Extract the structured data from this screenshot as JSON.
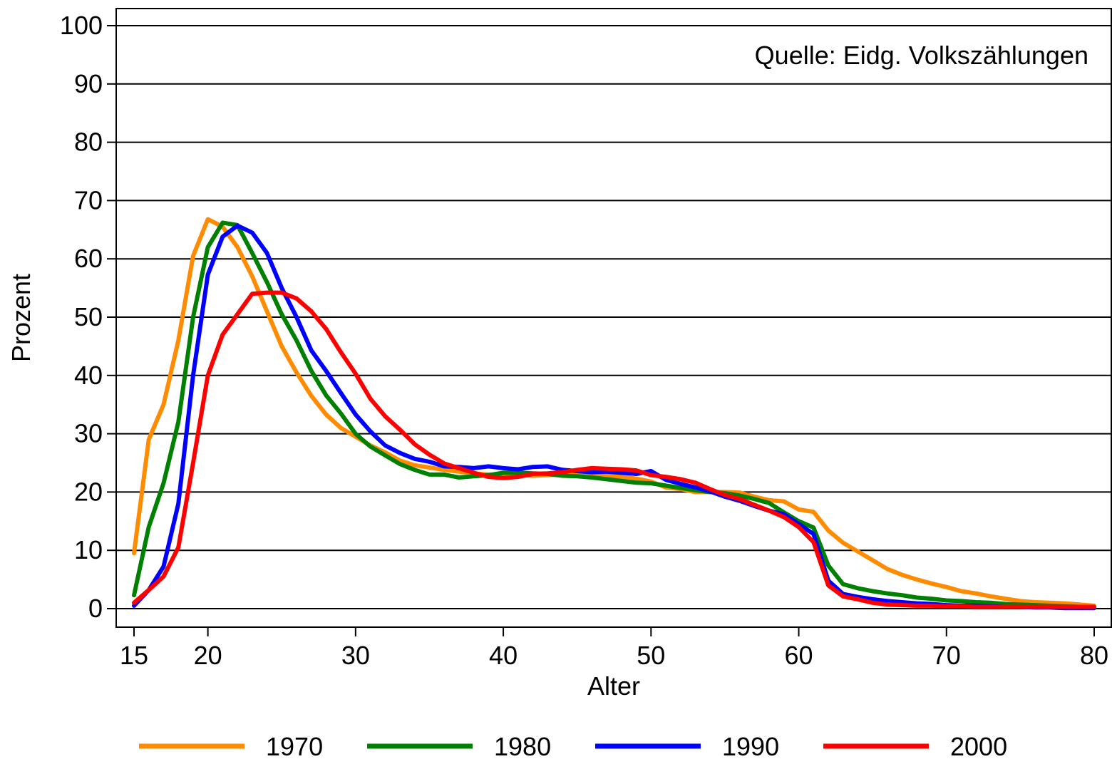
{
  "chart_data": {
    "type": "line",
    "title": "",
    "xlabel": "Alter",
    "ylabel": "Prozent",
    "annotation": "Quelle: Eidg. Volkszählungen",
    "xlim": [
      15,
      80
    ],
    "ylim": [
      0,
      100
    ],
    "xticks": [
      15,
      20,
      30,
      40,
      50,
      60,
      70,
      80
    ],
    "yticks": [
      0,
      10,
      20,
      30,
      40,
      50,
      60,
      70,
      80,
      90,
      100
    ],
    "grid": "horizontal",
    "legend_position": "bottom",
    "x": [
      15,
      16,
      17,
      18,
      19,
      20,
      21,
      22,
      23,
      24,
      25,
      26,
      27,
      28,
      29,
      30,
      31,
      32,
      33,
      34,
      35,
      36,
      37,
      38,
      39,
      40,
      41,
      42,
      43,
      44,
      45,
      46,
      47,
      48,
      49,
      50,
      51,
      52,
      53,
      54,
      55,
      56,
      57,
      58,
      59,
      60,
      61,
      62,
      63,
      64,
      65,
      66,
      67,
      68,
      69,
      70,
      71,
      72,
      73,
      74,
      75,
      76,
      77,
      78,
      79,
      80
    ],
    "series": [
      {
        "name": "1970",
        "color": "#ff8c00",
        "values": [
          9.5,
          29,
          35,
          46,
          60.5,
          66.8,
          65.5,
          62,
          57,
          51,
          45,
          40.5,
          36.5,
          33.3,
          31,
          29.5,
          28,
          26.8,
          25.4,
          24.6,
          24.2,
          23.8,
          23.5,
          23.2,
          23,
          22.9,
          22.9,
          22.8,
          22.9,
          23,
          23.2,
          23.2,
          22.9,
          22.6,
          22.3,
          21.8,
          20.8,
          20.5,
          20,
          20,
          20,
          19.9,
          19.2,
          18.6,
          18.4,
          17,
          16.6,
          13.4,
          11.3,
          9.8,
          8.3,
          6.8,
          5.8,
          5,
          4.3,
          3.7,
          3,
          2.6,
          2.1,
          1.7,
          1.3,
          1.1,
          1,
          0.9,
          0.7,
          0.5
        ]
      },
      {
        "name": "1980",
        "color": "#008000",
        "values": [
          2.3,
          14,
          21.5,
          32,
          50,
          62,
          66.2,
          65.8,
          61,
          56,
          50.5,
          46,
          40.8,
          36.6,
          33.5,
          30,
          27.8,
          26.3,
          24.8,
          23.8,
          23,
          23,
          22.5,
          22.7,
          22.9,
          23.3,
          23.3,
          23.2,
          23.1,
          22.8,
          22.7,
          22.5,
          22.2,
          21.9,
          21.6,
          21.5,
          21.1,
          20.7,
          20.3,
          20,
          19.8,
          19.4,
          18.8,
          18.1,
          16.5,
          15,
          13.9,
          7.4,
          4.2,
          3.5,
          3,
          2.6,
          2.3,
          1.9,
          1.7,
          1.4,
          1.3,
          1.1,
          1,
          0.8,
          0.7,
          0.6,
          0.5,
          0.4,
          0.3,
          0.2
        ]
      },
      {
        "name": "1990",
        "color": "#0000ff",
        "values": [
          0.5,
          3.2,
          7.2,
          18,
          40,
          57.3,
          63.8,
          65.7,
          64.5,
          61,
          55,
          50,
          44.3,
          40.8,
          37,
          33.3,
          30.4,
          28,
          26.7,
          25.7,
          25.2,
          24.4,
          24.3,
          24.1,
          24.4,
          24.1,
          23.9,
          24.3,
          24.4,
          23.8,
          23.6,
          23.4,
          23.5,
          23.3,
          23.1,
          23.6,
          22.1,
          21.4,
          20.8,
          20.1,
          19.2,
          18.5,
          17.6,
          16.8,
          16.2,
          14.5,
          12.8,
          4.8,
          2.5,
          2,
          1.6,
          1.3,
          1.1,
          0.9,
          0.8,
          0.6,
          0.5,
          0.5,
          0.4,
          0.3,
          0.3,
          0.2,
          0.2,
          0.1,
          0.1,
          0.1
        ]
      },
      {
        "name": "2000",
        "color": "#ff0000",
        "values": [
          1,
          3.2,
          5.5,
          10.5,
          25,
          40,
          47,
          50.5,
          54,
          54.2,
          54.2,
          53.2,
          51,
          48,
          44,
          40.3,
          36,
          33,
          30.7,
          28.2,
          26.4,
          24.9,
          24.1,
          23.3,
          22.6,
          22.4,
          22.6,
          23.1,
          23.2,
          23.4,
          23.8,
          24.1,
          24,
          23.9,
          23.7,
          22.9,
          22.6,
          22.2,
          21.6,
          20.5,
          19.5,
          18.8,
          17.8,
          16.8,
          15.7,
          14,
          11.4,
          4,
          2.1,
          1.6,
          1,
          0.7,
          0.6,
          0.5,
          0.5,
          0.4,
          0.4,
          0.3,
          0.3,
          0.3,
          0.3,
          0.3,
          0.3,
          0.3,
          0.3,
          0.3
        ]
      }
    ]
  }
}
